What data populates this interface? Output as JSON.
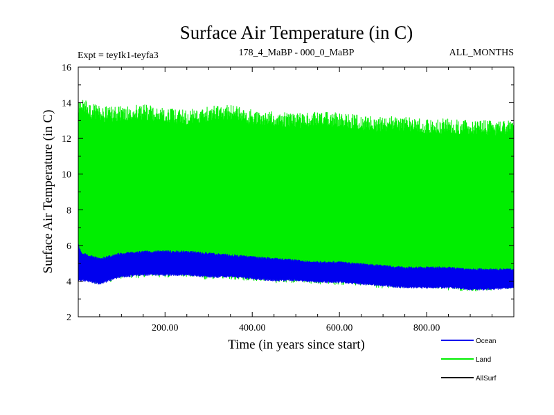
{
  "chart_data": {
    "type": "line",
    "title": "Surface Air Temperature (in C)",
    "subtitle_left": "Expt = teyIk1-teyfa3",
    "subtitle_center": "178_4_MaBP - 000_0_MaBP",
    "subtitle_right": "ALL_MONTHS",
    "xlabel": "Time (in years since start)",
    "ylabel": "Surface Air Temperature (in C)",
    "xlim": [
      1,
      1000
    ],
    "ylim": [
      2,
      16
    ],
    "x_ticks": [
      200,
      400,
      600,
      800
    ],
    "x_tick_labels": [
      "200.00",
      "400.00",
      "600.00",
      "800.00"
    ],
    "y_ticks": [
      2,
      4,
      6,
      8,
      10,
      12,
      14,
      16
    ],
    "y_tick_labels": [
      "2",
      "4",
      "6",
      "8",
      "10",
      "12",
      "14",
      "16"
    ],
    "legend_position": "bottom-right",
    "series": [
      {
        "name": "Land",
        "color": "#00ee00",
        "x": [
          1,
          10,
          50,
          100,
          150,
          200,
          250,
          300,
          350,
          400,
          450,
          500,
          550,
          600,
          650,
          700,
          750,
          800,
          850,
          900,
          950,
          1000
        ],
        "low": [
          3.8,
          4.0,
          3.8,
          4.1,
          4.2,
          4.2,
          4.2,
          4.1,
          4.1,
          4.0,
          3.9,
          3.9,
          3.8,
          3.8,
          3.7,
          3.6,
          3.6,
          3.6,
          3.5,
          3.4,
          3.5,
          3.5
        ],
        "high": [
          14.4,
          14.2,
          13.8,
          13.8,
          13.9,
          13.7,
          13.6,
          13.8,
          13.9,
          13.6,
          13.5,
          13.4,
          13.5,
          13.5,
          13.3,
          13.2,
          13.3,
          13.1,
          13.1,
          13.0,
          13.0,
          13.0
        ]
      },
      {
        "name": "Ocean",
        "color": "#0000ee",
        "x": [
          1,
          10,
          50,
          100,
          150,
          200,
          250,
          300,
          350,
          400,
          450,
          500,
          550,
          600,
          650,
          700,
          750,
          800,
          850,
          900,
          950,
          1000
        ],
        "low": [
          3.9,
          4.0,
          3.8,
          4.2,
          4.3,
          4.3,
          4.3,
          4.2,
          4.2,
          4.1,
          4.0,
          4.0,
          3.9,
          3.9,
          3.8,
          3.7,
          3.6,
          3.6,
          3.6,
          3.5,
          3.5,
          3.6
        ],
        "high": [
          6.1,
          5.6,
          5.3,
          5.6,
          5.7,
          5.7,
          5.7,
          5.6,
          5.5,
          5.4,
          5.3,
          5.2,
          5.1,
          5.1,
          5.0,
          4.9,
          4.8,
          4.8,
          4.8,
          4.7,
          4.7,
          4.7
        ]
      },
      {
        "name": "AllSurf",
        "color": "#000000",
        "x": [],
        "values": []
      }
    ]
  }
}
